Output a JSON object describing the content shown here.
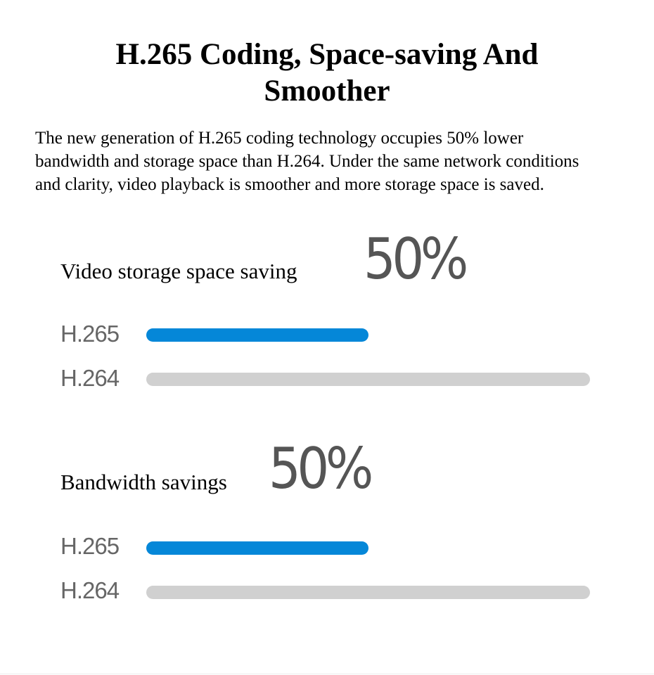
{
  "title": {
    "line1": "H.265 Coding, Space-saving And",
    "line2": "Smoother"
  },
  "description": "The new generation of H.265 coding technology occupies 50% lower bandwidth and storage space than H.264. Under the same network conditions and clarity, video playback is smoother and more storage space is saved.",
  "colors": {
    "h265": "#0587d8",
    "h264": "#d0d0d0",
    "big_number": "#555555"
  },
  "chart_data": [
    {
      "type": "bar",
      "title": "Video storage space saving",
      "highlight": "50%",
      "categories": [
        "H.265",
        "H.264"
      ],
      "values": [
        50,
        100
      ],
      "xlim": [
        0,
        100
      ],
      "orientation": "horizontal"
    },
    {
      "type": "bar",
      "title": "Bandwidth savings",
      "highlight": "50%",
      "categories": [
        "H.265",
        "H.264"
      ],
      "values": [
        50,
        100
      ],
      "xlim": [
        0,
        100
      ],
      "orientation": "horizontal"
    }
  ]
}
